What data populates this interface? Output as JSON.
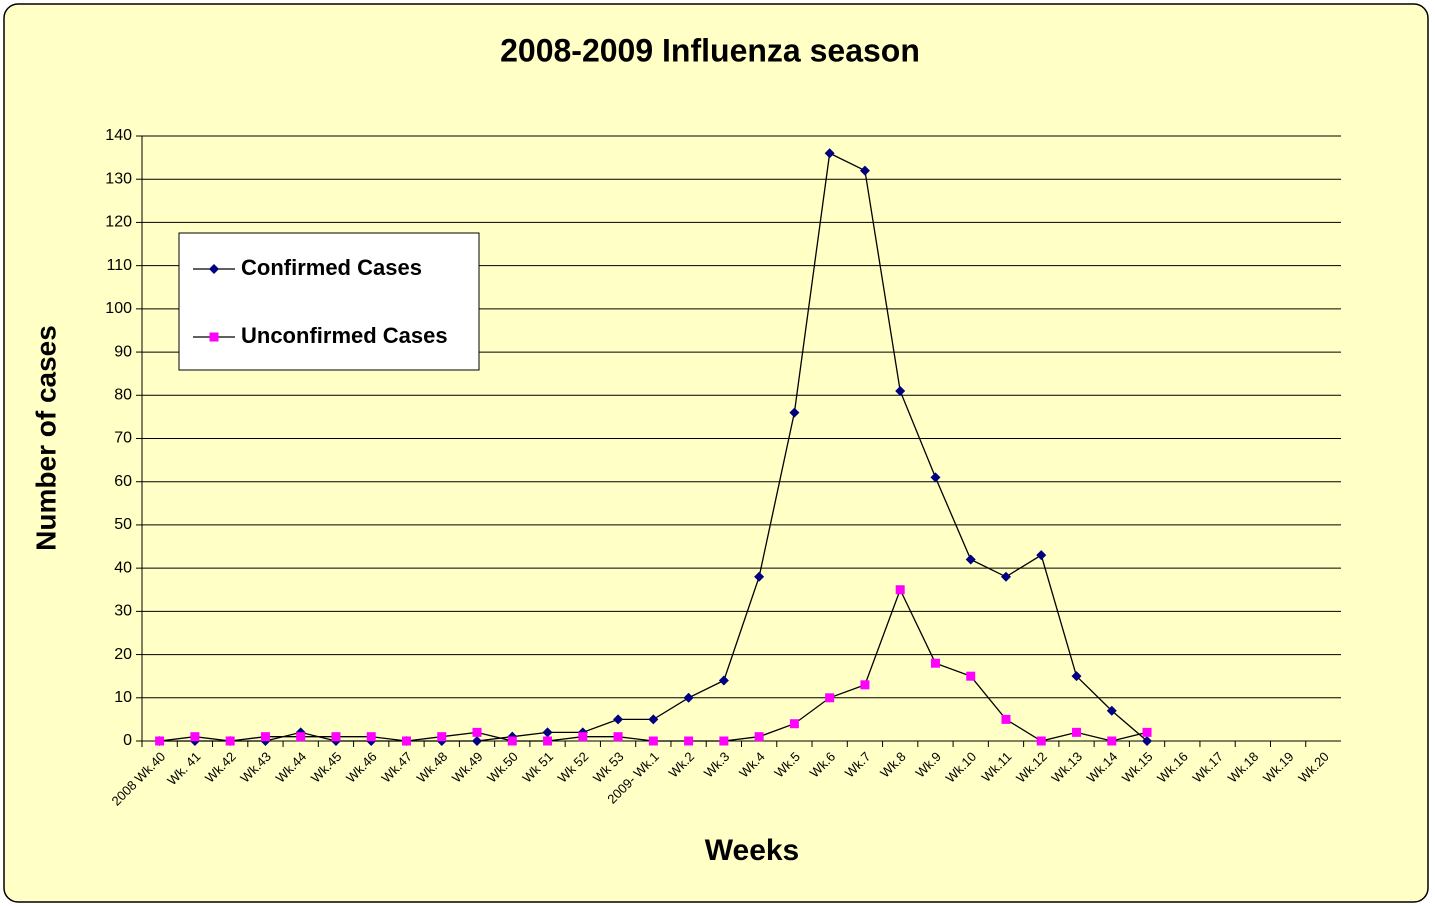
{
  "chart_data": {
    "type": "line",
    "title": "2008-2009 Influenza season",
    "x_label": "Weeks",
    "y_label": "Number of cases",
    "categories": [
      "2008 Wk.40",
      "Wk. 41",
      "Wk.42",
      "Wk.43",
      "Wk.44",
      "Wk.45",
      "Wk.46",
      "Wk.47",
      "Wk.48",
      "Wk.49",
      "Wk.50",
      "Wk 51",
      "Wk 52",
      "Wk 53",
      "2009- Wk.1",
      "Wk.2",
      "Wk.3",
      "Wk.4",
      "Wk.5",
      "Wk.6",
      "Wk.7",
      "Wk.8",
      "Wk.9",
      "Wk.10",
      "Wk.11",
      "Wk.12",
      "Wk.13",
      "Wk.14",
      "Wk.15",
      "Wk.16",
      "Wk.17",
      "Wk.18",
      "Wk.19",
      "Wk.20"
    ],
    "series": [
      {
        "name": "Confirmed Cases",
        "color": "#000080",
        "marker": "diamond",
        "values": [
          0,
          0,
          0,
          0,
          2,
          0,
          0,
          0,
          0,
          0,
          1,
          2,
          2,
          5,
          5,
          10,
          14,
          38,
          76,
          136,
          132,
          81,
          61,
          42,
          38,
          43,
          15,
          7,
          0,
          null,
          null,
          null,
          null,
          null
        ]
      },
      {
        "name": "Unconfirmed Cases",
        "color": "#ff00ff",
        "marker": "square",
        "values": [
          0,
          1,
          0,
          1,
          1,
          1,
          1,
          0,
          1,
          2,
          0,
          0,
          1,
          1,
          0,
          0,
          0,
          1,
          4,
          10,
          13,
          35,
          18,
          15,
          5,
          0,
          2,
          0,
          2,
          null,
          null,
          null,
          null,
          null
        ]
      }
    ],
    "ylim": [
      0,
      140
    ],
    "yticks": [
      0,
      10,
      20,
      30,
      40,
      50,
      60,
      70,
      80,
      90,
      100,
      110,
      120,
      130,
      140
    ],
    "grid": true,
    "legend": "upper left"
  }
}
